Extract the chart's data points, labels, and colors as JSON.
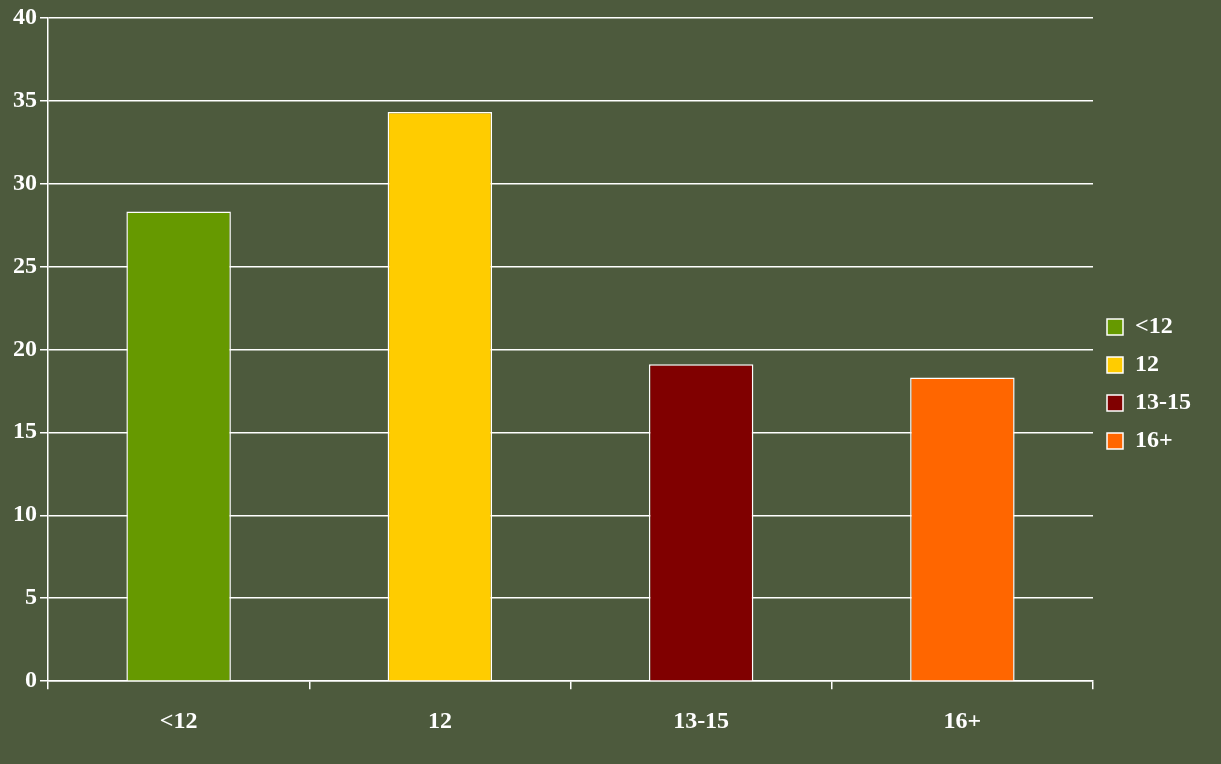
{
  "chart_data": {
    "type": "bar",
    "categories": [
      "<12",
      "12",
      "13-15",
      "16+"
    ],
    "series": [
      {
        "name": "<12",
        "color": "#669900",
        "values": [
          28.3,
          null,
          null,
          null
        ]
      },
      {
        "name": "12",
        "color": "#ffcc00",
        "values": [
          null,
          34.3,
          null,
          null
        ]
      },
      {
        "name": "13-15",
        "color": "#800000",
        "values": [
          null,
          null,
          19.1,
          null
        ]
      },
      {
        "name": "16+",
        "color": "#ff6600",
        "values": [
          null,
          null,
          null,
          18.3
        ]
      }
    ],
    "ylim": [
      0,
      40
    ],
    "yticks": [
      0,
      5,
      10,
      15,
      20,
      25,
      30,
      35,
      40
    ],
    "grid": "y",
    "legend": "right"
  }
}
